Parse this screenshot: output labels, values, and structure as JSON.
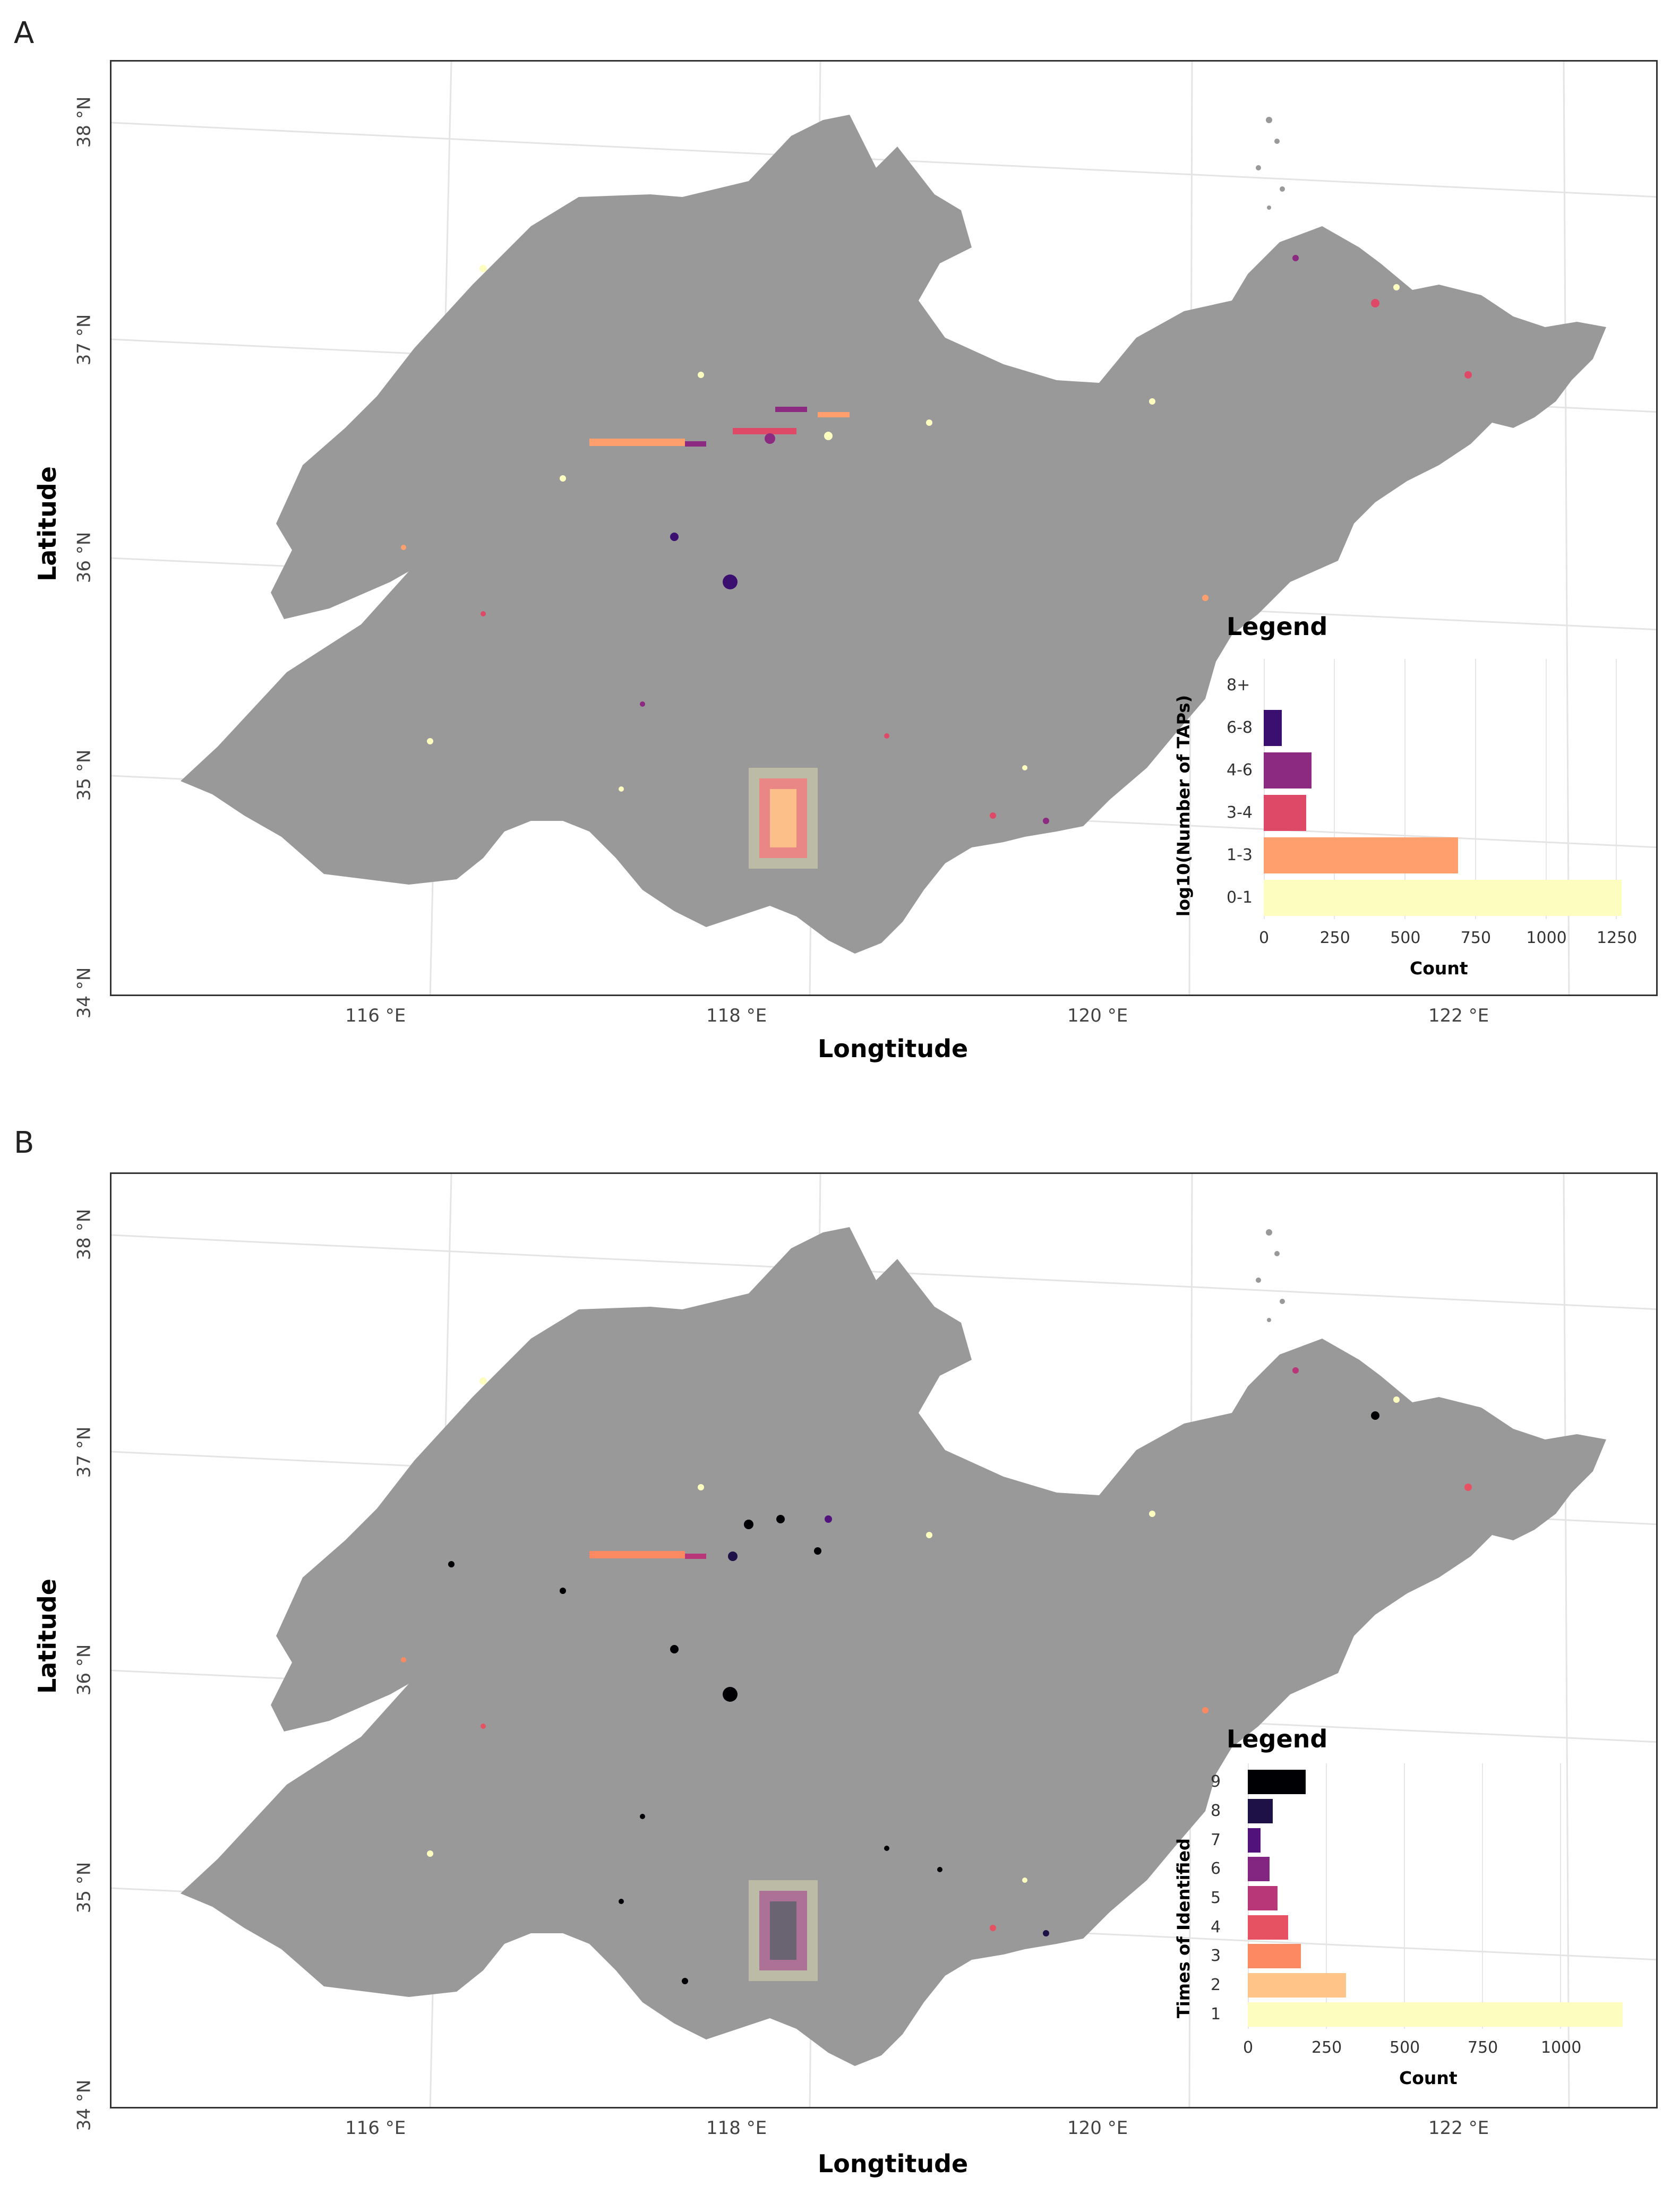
{
  "panels": [
    {
      "label": "A",
      "x_title": "Longtitude",
      "y_title": "Latitude",
      "x_ticks": [
        "116 °E",
        "118 °E",
        "120 °E",
        "122 °E"
      ],
      "y_ticks": [
        "34 °N",
        "35 °N",
        "36 °N",
        "37 °N",
        "38 °N"
      ],
      "legend": {
        "title": "Legend",
        "ylabel": "log10(Number of TAPs)",
        "xlabel": "Count",
        "count_ticks": [
          "0",
          "250",
          "500",
          "750",
          "1000",
          "1250"
        ],
        "max": 1300,
        "categories": [
          {
            "label": "8+",
            "value": 0,
            "color": "#000004"
          },
          {
            "label": "6-8",
            "value": 65,
            "color": "#3b0f70"
          },
          {
            "label": "4-6",
            "value": 170,
            "color": "#8c2981"
          },
          {
            "label": "3-4",
            "value": 150,
            "color": "#de4968"
          },
          {
            "label": "1-3",
            "value": 690,
            "color": "#fe9f6d"
          },
          {
            "label": "0-1",
            "value": 1270,
            "color": "#fcfdbf"
          }
        ]
      }
    },
    {
      "label": "B",
      "x_title": "Longtitude",
      "y_title": "Latitude",
      "x_ticks": [
        "116 °E",
        "118 °E",
        "120 °E",
        "122 °E"
      ],
      "y_ticks": [
        "34 °N",
        "35 °N",
        "36 °N",
        "37 °N",
        "38 °N"
      ],
      "legend": {
        "title": "Legend",
        "ylabel": "Times of Identified",
        "xlabel": "Count",
        "count_ticks": [
          "0",
          "250",
          "500",
          "750",
          "1000"
        ],
        "max": 1200,
        "categories": [
          {
            "label": "9",
            "value": 185,
            "color": "#000004"
          },
          {
            "label": "8",
            "value": 80,
            "color": "#1d1147"
          },
          {
            "label": "7",
            "value": 40,
            "color": "#51127c"
          },
          {
            "label": "6",
            "value": 70,
            "color": "#832681"
          },
          {
            "label": "5",
            "value": 95,
            "color": "#b73779"
          },
          {
            "label": "4",
            "value": 130,
            "color": "#e75263"
          },
          {
            "label": "3",
            "value": 170,
            "color": "#fc8961"
          },
          {
            "label": "2",
            "value": 315,
            "color": "#fec488"
          },
          {
            "label": "1",
            "value": 1200,
            "color": "#fcfdbf"
          }
        ]
      }
    }
  ],
  "colors": {
    "land": "#999999",
    "graticule": "#e4e4e4"
  }
}
